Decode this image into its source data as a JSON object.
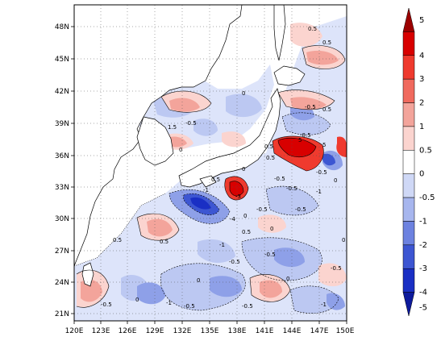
{
  "map": {
    "lon_ticks": [
      "120E",
      "123E",
      "126E",
      "129E",
      "132E",
      "135E",
      "138E",
      "141E",
      "144E",
      "147E",
      "150E"
    ],
    "lat_ticks": [
      "48N",
      "45N",
      "42N",
      "39N",
      "36N",
      "33N",
      "30N",
      "27N",
      "24N",
      "21N"
    ],
    "lon_range": [
      120,
      150
    ],
    "lat_range": [
      20,
      50
    ],
    "gridlines": true,
    "coastline_color": "#000000"
  },
  "colorbar": {
    "levels": [
      "5",
      "4",
      "3",
      "2",
      "1",
      "0.5",
      "0",
      "-0.5",
      "-1",
      "-2",
      "-3",
      "-4",
      "-5"
    ],
    "colors": [
      "#9c0000",
      "#d80000",
      "#ef3a2e",
      "#f06a5e",
      "#f3a49b",
      "#fbd4cf",
      "#ffffff",
      "#cfd8f6",
      "#a7b6ee",
      "#6d82e0",
      "#3d56d2",
      "#1a2fc4",
      "#0d1a9c"
    ]
  },
  "contour_labels": [
    {
      "text": "0.5"
    },
    {
      "text": "0"
    },
    {
      "text": "-0.5"
    },
    {
      "text": "1.5"
    },
    {
      "text": "0"
    },
    {
      "text": "-0.5"
    },
    {
      "text": "0.5"
    },
    {
      "text": "-0.5"
    },
    {
      "text": "0.5"
    },
    {
      "text": "0"
    },
    {
      "text": "0.5"
    },
    {
      "text": "-1"
    },
    {
      "text": "-3"
    },
    {
      "text": "-0.5"
    },
    {
      "text": "-0.5"
    },
    {
      "text": "-4"
    },
    {
      "text": "0"
    },
    {
      "text": "-0.5"
    },
    {
      "text": "0.5"
    },
    {
      "text": "-1"
    },
    {
      "text": "-0.5"
    },
    {
      "text": "0.5"
    },
    {
      "text": "0"
    },
    {
      "text": "-0.5"
    },
    {
      "text": "0.5"
    },
    {
      "text": "-0.5"
    },
    {
      "text": "0"
    },
    {
      "text": "-1"
    },
    {
      "text": "-0.5"
    },
    {
      "text": "0"
    },
    {
      "text": "-0.5"
    },
    {
      "text": "-1"
    },
    {
      "text": "0"
    },
    {
      "text": "-0.5"
    },
    {
      "text": "-1"
    },
    {
      "text": "5"
    },
    {
      "text": "-0.5"
    },
    {
      "text": "0.5"
    },
    {
      "text": "-0.5"
    },
    {
      "text": "0"
    },
    {
      "text": "5"
    },
    {
      "text": "0"
    },
    {
      "text": "0.5"
    }
  ]
}
